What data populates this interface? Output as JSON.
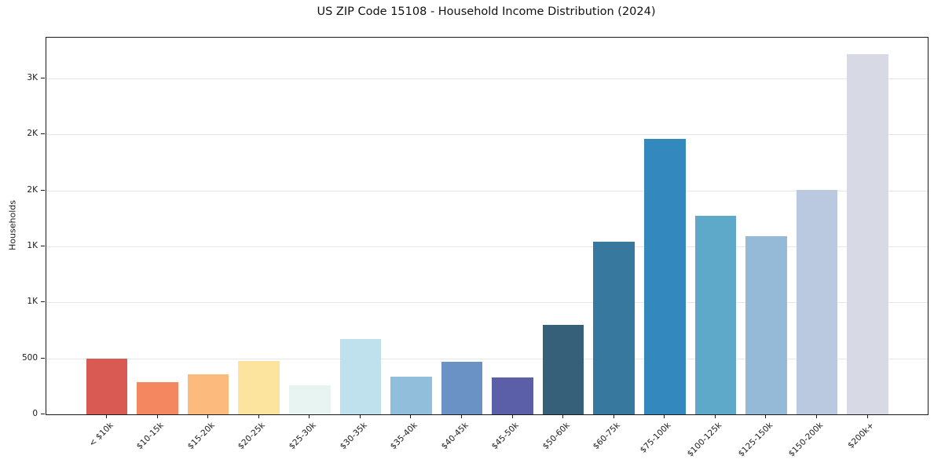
{
  "chart": {
    "title": "US ZIP Code 15108 - Household Income Distribution (2024)",
    "ylabel": "Households"
  },
  "chart_data": {
    "type": "bar",
    "title": "US ZIP Code 15108 - Household Income Distribution (2024)",
    "xlabel": "",
    "ylabel": "Households",
    "categories": [
      "< $10k",
      "$10-15k",
      "$15-20k",
      "$20-25k",
      "$25-30k",
      "$30-35k",
      "$35-40k",
      "$40-45k",
      "$45-50k",
      "$50-60k",
      "$60-75k",
      "$75-100k",
      "$100-125k",
      "$125-150k",
      "$150-200k",
      "$200k+"
    ],
    "values": [
      500,
      290,
      360,
      475,
      260,
      675,
      335,
      470,
      330,
      800,
      1540,
      2460,
      1775,
      1590,
      2005,
      3220
    ],
    "bar_colors": [
      "#d95a52",
      "#f4875f",
      "#fcba7c",
      "#fde49e",
      "#e8f4f1",
      "#bfe1ee",
      "#90bedb",
      "#6b92c5",
      "#5b5fa7",
      "#36607a",
      "#37789f",
      "#3389bd",
      "#5ea8ca",
      "#94bad8",
      "#bac9e0",
      "#d7d9e5"
    ],
    "ylim": [
      0,
      3365
    ],
    "yticks": [
      {
        "value": 0,
        "label": "0"
      },
      {
        "value": 500,
        "label": "500"
      },
      {
        "value": 1000,
        "label": "1K"
      },
      {
        "value": 1500,
        "label": "1K"
      },
      {
        "value": 2000,
        "label": "2K"
      },
      {
        "value": 2500,
        "label": "2K"
      },
      {
        "value": 3000,
        "label": "3K"
      }
    ],
    "grid": "horizontal",
    "legend": "none",
    "x_tick_rotation": 45
  }
}
